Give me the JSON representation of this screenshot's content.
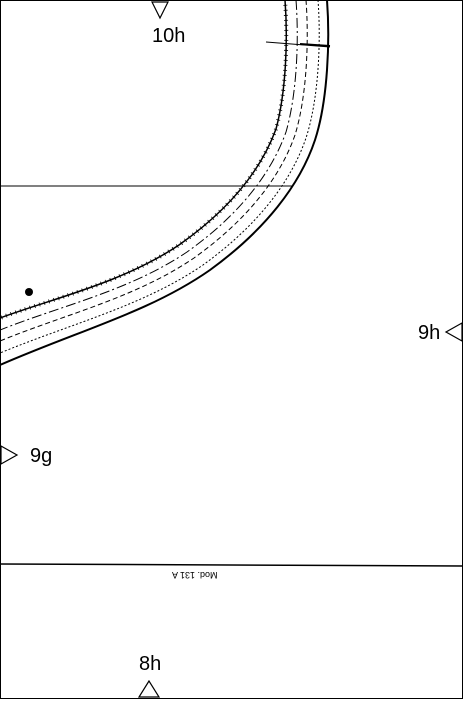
{
  "marks": {
    "top": "10h",
    "right": "9h",
    "left": "9g",
    "bottom": "8h"
  },
  "model_code": "Mod. 131 A"
}
